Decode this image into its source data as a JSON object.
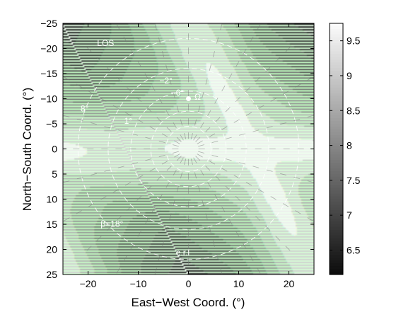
{
  "chart_data": {
    "type": "heatmap",
    "title": "",
    "xlabel": "East−West Coord. (°)",
    "ylabel": "North−South Coord. (°)",
    "xlim": [
      -25,
      25
    ],
    "ylim": [
      25,
      -25
    ],
    "y_axis_inverted": true,
    "x_ticks": [
      -20,
      -10,
      0,
      10,
      20
    ],
    "x_tick_labels": [
      "−20",
      "−10",
      "0",
      "10",
      "20"
    ],
    "y_ticks": [
      -25,
      -20,
      -15,
      -10,
      -5,
      0,
      5,
      10,
      15,
      20,
      25
    ],
    "y_tick_labels": [
      "−25",
      "−20",
      "−15",
      "−10",
      "−5",
      "0",
      "5",
      "10",
      "15",
      "20",
      "25"
    ],
    "colorbar": {
      "range": [
        6.15,
        9.75
      ],
      "ticks": [
        6.5,
        7,
        7.5,
        8,
        8.5,
        9,
        9.5
      ],
      "tick_labels": [
        "6.5",
        "7",
        "7.5",
        "8",
        "8.5",
        "9",
        "9.5"
      ],
      "colormap": "gray"
    },
    "field": {
      "pattern": "eight-lobed (four-fold symmetric) bright cross pattern centered at the origin, lobes along 0°, 45°, 90°, 135°, brightest near center, decreasing outward",
      "center_value": 9.75,
      "min_value": 6.15,
      "filled_contour_levels": 8
    },
    "circles": [
      {
        "label": "LOS",
        "radius_deg": 22,
        "style": "dashed",
        "color": "#ffffff"
      },
      {
        "label": "8°",
        "radius_deg": 16,
        "style": "dashed",
        "color": "#ffffff"
      },
      {
        "label": "1°",
        "radius_deg": 11.5,
        "style": "dashed",
        "color": "#ffffff"
      },
      {
        "label": "−2°",
        "radius_deg": 7.5,
        "style": "dashed",
        "color": "#ffffff"
      },
      {
        "label": "−6°",
        "radius_deg": 4.5,
        "style": "dashed",
        "color": "#ffffff"
      }
    ],
    "annotations": [
      {
        "text": "LOS",
        "x": -18.2,
        "y": -20.5
      },
      {
        "text": "8°",
        "x": -21.5,
        "y": -7.5
      },
      {
        "text": "1°",
        "x": -12.8,
        "y": -5.0
      },
      {
        "text": "−2°",
        "x": -5.8,
        "y": -13.0
      },
      {
        "text": "−6°",
        "x": -3.5,
        "y": -10.6
      },
      {
        "text": "Ω",
        "x": 1.2,
        "y": -9.8
      },
      {
        "text": "β=18°",
        "x": -17.5,
        "y": 15.5
      },
      {
        "text": "e.r.l",
        "x": -2.5,
        "y": 21.2
      }
    ],
    "marker": {
      "label": "Ω",
      "x": 0,
      "y": -10
    }
  }
}
